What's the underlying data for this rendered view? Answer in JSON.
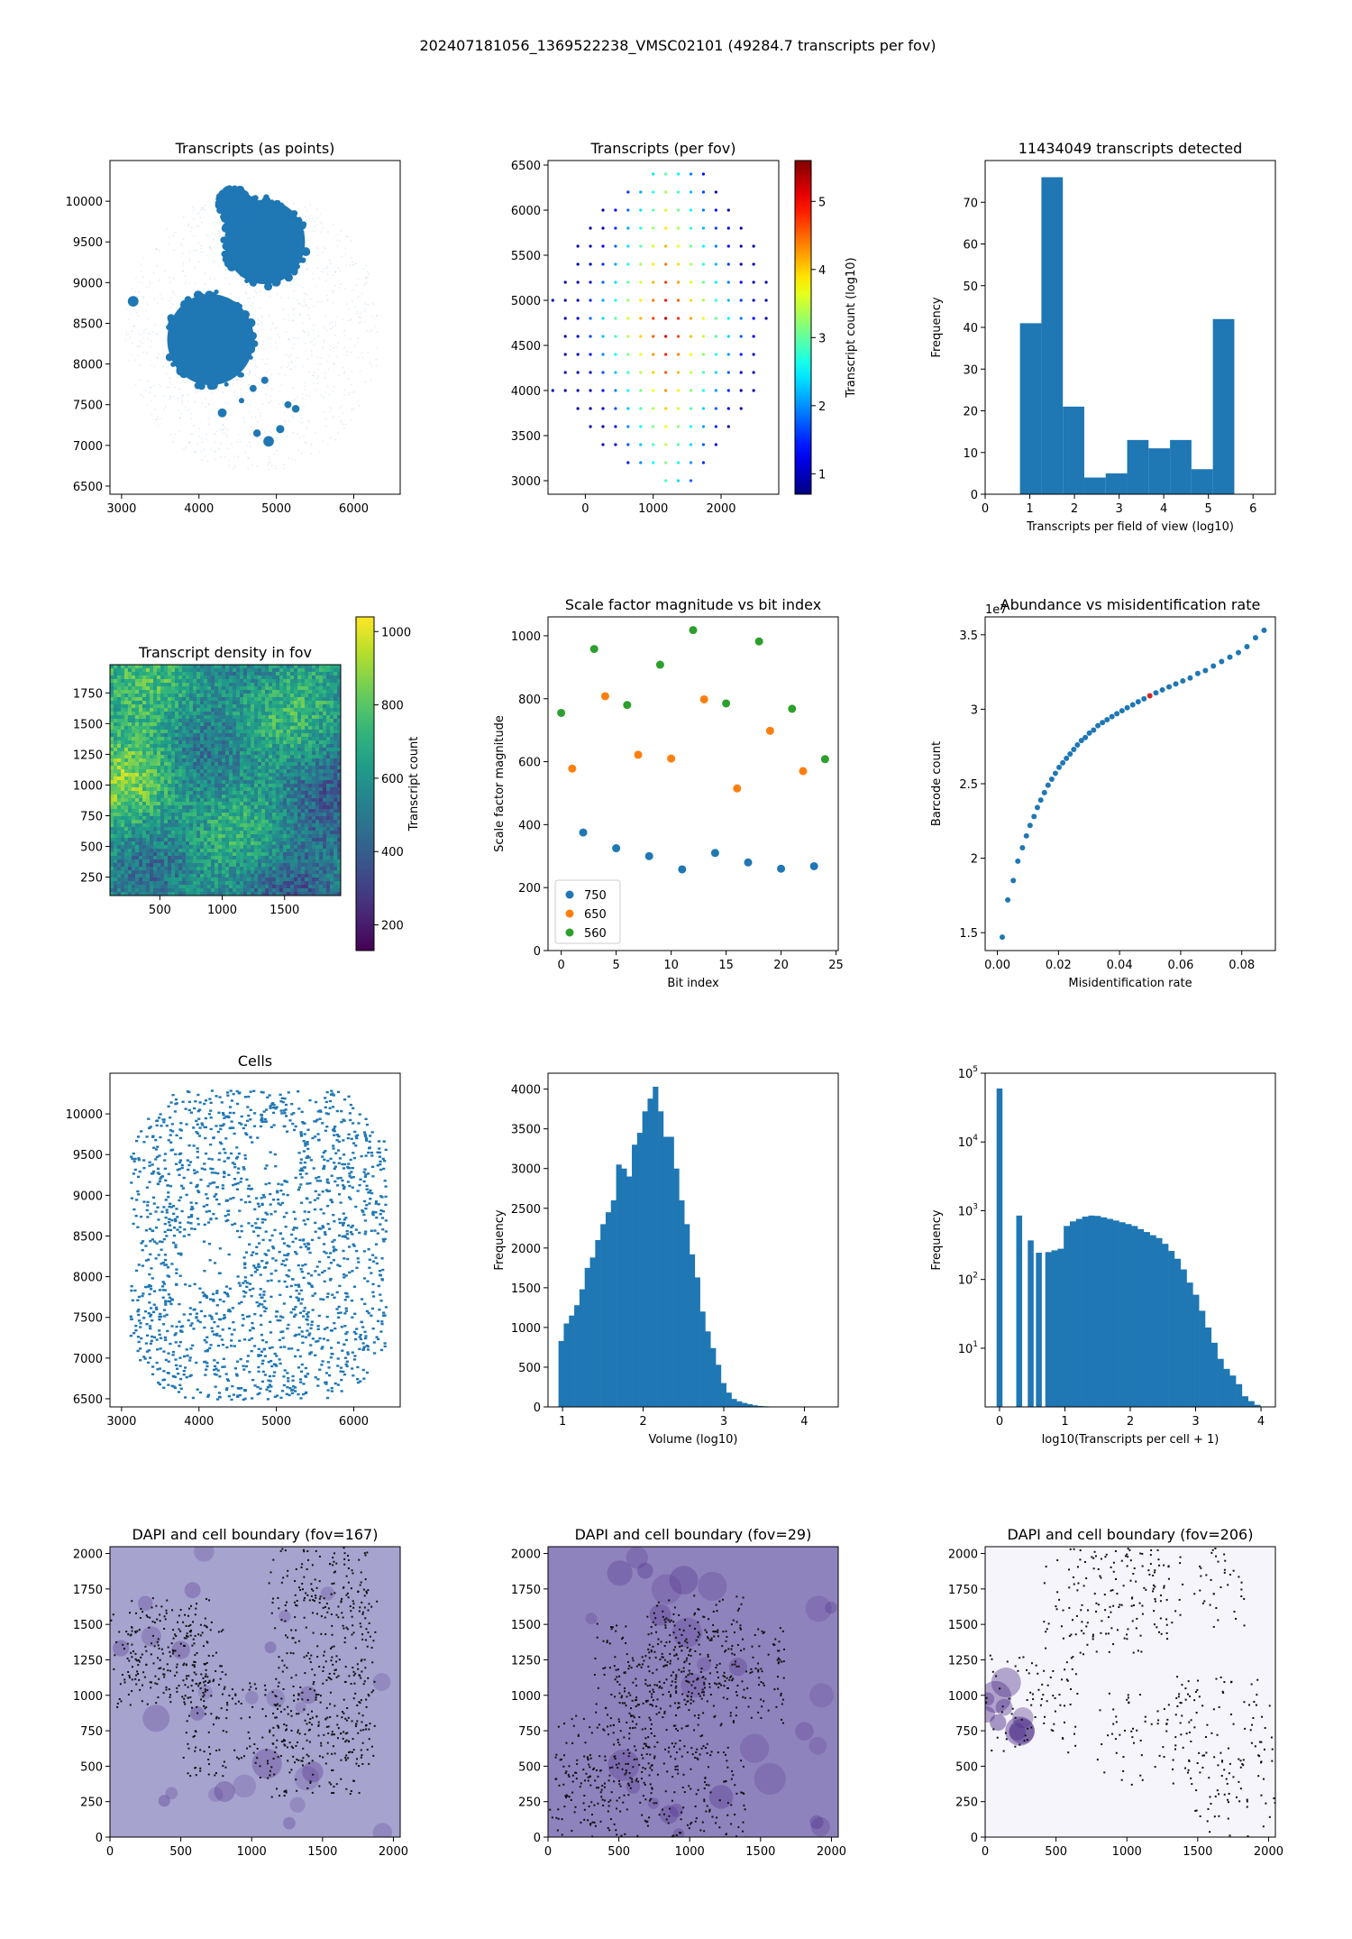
{
  "figure_title": "202407181056_1369522238_VMSC02101 (49284.7 transcripts per fov)",
  "colors": {
    "tab_blue": "#1f77b4",
    "tab_orange": "#ff7f0e",
    "tab_green": "#2ca02c",
    "tab_red": "#d62728",
    "dapi": "#6a4c9c"
  },
  "chart_data": [
    {
      "id": "p1",
      "type": "scatter",
      "title": "Transcripts (as points)",
      "xlabel": "",
      "ylabel": "",
      "xlim": [
        2850,
        6600
      ],
      "ylim": [
        6400,
        10500
      ],
      "xticks": [
        3000,
        4000,
        5000,
        6000
      ],
      "yticks": [
        6500,
        7000,
        7500,
        8000,
        8500,
        9000,
        9500,
        10000
      ],
      "blobs": [
        {
          "shape": "disc",
          "cx": 4850,
          "cy": 9500,
          "r": 520
        },
        {
          "shape": "disc",
          "cx": 4150,
          "cy": 8300,
          "r": 560
        },
        {
          "shape": "disc",
          "cx": 4450,
          "cy": 9950,
          "r": 200
        },
        {
          "shape": "small",
          "points": [
            [
              3150,
              8770
            ],
            [
              4700,
              7700
            ],
            [
              4850,
              7800
            ],
            [
              5150,
              7500
            ],
            [
              5250,
              7450
            ],
            [
              4750,
              7150
            ],
            [
              4900,
              7050
            ],
            [
              4550,
              7550
            ],
            [
              4300,
              7400
            ],
            [
              5050,
              7200
            ]
          ]
        }
      ],
      "halo": {
        "xlim": [
          3000,
          6300
        ],
        "ylim": [
          6700,
          10000
        ]
      }
    },
    {
      "id": "p2",
      "type": "scatter",
      "title": "Transcripts (per fov)",
      "xlabel": "",
      "ylabel": "",
      "xlim": [
        -550,
        2850
      ],
      "ylim": [
        2850,
        6550
      ],
      "xticks": [
        0,
        1000,
        2000
      ],
      "yticks": [
        3000,
        3500,
        4000,
        4500,
        5000,
        5500,
        6000,
        6500
      ],
      "colorbar": {
        "label": "Transcript count (log10)",
        "range": [
          0.7,
          5.6
        ],
        "ticks": [
          1,
          2,
          3,
          4,
          5
        ],
        "cmap": "jet"
      },
      "grid": {
        "x0": -400,
        "dx": 185,
        "y0": 3000,
        "dy": 200,
        "cx": 1200,
        "cy": 4750
      },
      "rows": [
        {
          "y": 6400,
          "x": [
            1000,
            1185,
            1370,
            1555,
            1740
          ]
        },
        {
          "y": 6200,
          "x": [
            630,
            815,
            1000,
            1185,
            1370,
            1555,
            1740,
            1925
          ]
        },
        {
          "y": 6000,
          "x": [
            260,
            445,
            630,
            815,
            1000,
            1185,
            1370,
            1555,
            1740,
            1925,
            2110
          ]
        },
        {
          "y": 5800,
          "x": [
            75,
            260,
            445,
            630,
            815,
            1000,
            1185,
            1370,
            1555,
            1740,
            1925,
            2110,
            2295
          ]
        },
        {
          "y": 5600,
          "x": [
            -110,
            75,
            260,
            445,
            630,
            815,
            1000,
            1185,
            1370,
            1555,
            1740,
            1925,
            2110,
            2295,
            2480
          ]
        },
        {
          "y": 5400,
          "x": [
            -110,
            75,
            260,
            445,
            630,
            815,
            1000,
            1185,
            1370,
            1555,
            1740,
            1925,
            2110,
            2295,
            2480
          ]
        },
        {
          "y": 5200,
          "x": [
            -295,
            -110,
            75,
            260,
            445,
            630,
            815,
            1000,
            1185,
            1370,
            1555,
            1740,
            1925,
            2110,
            2295,
            2480,
            2665
          ]
        },
        {
          "y": 5000,
          "x": [
            -480,
            -295,
            -110,
            75,
            260,
            445,
            630,
            815,
            1000,
            1185,
            1370,
            1555,
            1740,
            1925,
            2110,
            2295,
            2480,
            2665
          ]
        },
        {
          "y": 4800,
          "x": [
            -295,
            -110,
            75,
            260,
            445,
            630,
            815,
            1000,
            1185,
            1370,
            1555,
            1740,
            1925,
            2110,
            2295,
            2480,
            2665
          ]
        },
        {
          "y": 4600,
          "x": [
            -295,
            -110,
            75,
            260,
            445,
            630,
            815,
            1000,
            1185,
            1370,
            1555,
            1740,
            1925,
            2110,
            2295,
            2480
          ]
        },
        {
          "y": 4400,
          "x": [
            -295,
            -110,
            75,
            260,
            445,
            630,
            815,
            1000,
            1185,
            1370,
            1555,
            1740,
            1925,
            2110,
            2295,
            2480
          ]
        },
        {
          "y": 4200,
          "x": [
            -295,
            -110,
            75,
            260,
            445,
            630,
            815,
            1000,
            1185,
            1370,
            1555,
            1740,
            1925,
            2110,
            2295,
            2480
          ]
        },
        {
          "y": 4000,
          "x": [
            -480,
            -295,
            -110,
            75,
            260,
            445,
            630,
            815,
            1000,
            1185,
            1370,
            1555,
            1740,
            1925,
            2110,
            2295,
            2480
          ]
        },
        {
          "y": 3800,
          "x": [
            -110,
            75,
            260,
            445,
            630,
            815,
            1000,
            1185,
            1370,
            1555,
            1740,
            1925,
            2110,
            2295
          ]
        },
        {
          "y": 3600,
          "x": [
            75,
            260,
            445,
            630,
            815,
            1000,
            1185,
            1370,
            1555,
            1740,
            1925,
            2110
          ]
        },
        {
          "y": 3400,
          "x": [
            260,
            445,
            630,
            815,
            1000,
            1185,
            1370,
            1555,
            1740,
            1925
          ]
        },
        {
          "y": 3200,
          "x": [
            630,
            815,
            1000,
            1185,
            1370,
            1555,
            1740
          ]
        },
        {
          "y": 3000,
          "x": [
            1185,
            1370,
            1555
          ]
        }
      ]
    },
    {
      "id": "p3",
      "type": "bar",
      "title": "11434049 transcripts detected",
      "xlabel": "Transcripts per field of view (log10)",
      "ylabel": "Frequency",
      "xlim": [
        0,
        6.5
      ],
      "ylim": [
        0,
        80
      ],
      "xticks": [
        0,
        1,
        2,
        3,
        4,
        5,
        6
      ],
      "yticks": [
        0,
        10,
        20,
        30,
        40,
        50,
        60,
        70
      ],
      "bin_edges": [
        0.78,
        1.26,
        1.74,
        2.22,
        2.7,
        3.18,
        3.66,
        4.14,
        4.62,
        5.1,
        5.58
      ],
      "values": [
        41,
        76,
        21,
        4,
        5,
        13,
        11,
        13,
        6,
        42
      ]
    },
    {
      "id": "p4",
      "type": "heatmap",
      "title": "Transcript density in fov",
      "xlabel": "",
      "ylabel": "",
      "xlim": [
        100,
        1950
      ],
      "ylim": [
        100,
        1980
      ],
      "xticks": [
        500,
        1000,
        1500
      ],
      "yticks": [
        250,
        500,
        750,
        1000,
        1250,
        1500,
        1750
      ],
      "colorbar": {
        "label": "Transcript count",
        "range": [
          130,
          1040
        ],
        "ticks": [
          200,
          400,
          600,
          800,
          1000
        ],
        "cmap": "viridis"
      }
    },
    {
      "id": "p5",
      "type": "scatter",
      "title": "Scale factor magnitude vs bit index",
      "xlabel": "Bit index",
      "ylabel": "Scale factor magnitude",
      "xlim": [
        -1.2,
        25.2
      ],
      "ylim": [
        0,
        1060
      ],
      "xticks": [
        0,
        5,
        10,
        15,
        20,
        25
      ],
      "yticks": [
        0,
        200,
        400,
        600,
        800,
        1000
      ],
      "legend": "lower left",
      "series": [
        {
          "name": "750",
          "color": "#1f77b4",
          "x": [
            2,
            5,
            8,
            11,
            14,
            17,
            20,
            23
          ],
          "y": [
            375,
            325,
            300,
            258,
            310,
            280,
            260,
            268
          ]
        },
        {
          "name": "650",
          "color": "#ff7f0e",
          "x": [
            1,
            4,
            7,
            10,
            13,
            16,
            19,
            22
          ],
          "y": [
            578,
            808,
            622,
            610,
            798,
            515,
            698,
            570
          ]
        },
        {
          "name": "560",
          "color": "#2ca02c",
          "x": [
            0,
            3,
            6,
            9,
            12,
            15,
            18,
            21,
            24
          ],
          "y": [
            755,
            958,
            780,
            908,
            1018,
            785,
            982,
            768,
            608
          ]
        }
      ]
    },
    {
      "id": "p6",
      "type": "scatter",
      "title": "Abundance vs misidentification rate",
      "xlabel": "Misidentification rate",
      "ylabel": "Barcode count",
      "offset_label": "1e7",
      "xlim": [
        -0.004,
        0.091
      ],
      "ylim": [
        1.38,
        3.62
      ],
      "xticks": [
        0.0,
        0.02,
        0.04,
        0.06,
        0.08
      ],
      "xtick_labels": [
        "0.00",
        "0.02",
        "0.04",
        "0.06",
        "0.08"
      ],
      "yticks": [
        1.5,
        2.0,
        2.5,
        3.0,
        3.5
      ],
      "x": [
        0.0016,
        0.0034,
        0.0052,
        0.0067,
        0.0082,
        0.0095,
        0.0107,
        0.012,
        0.0131,
        0.0142,
        0.0154,
        0.0166,
        0.0178,
        0.019,
        0.0202,
        0.0214,
        0.0226,
        0.0238,
        0.025,
        0.0262,
        0.0275,
        0.0288,
        0.0301,
        0.0315,
        0.0329,
        0.0344,
        0.0359,
        0.0375,
        0.0391,
        0.0408,
        0.0425,
        0.0443,
        0.0461,
        0.048,
        0.0499,
        0.0519,
        0.054,
        0.0562,
        0.0584,
        0.0607,
        0.0631,
        0.0656,
        0.0681,
        0.0707,
        0.0734,
        0.0761,
        0.0789,
        0.0817,
        0.0845,
        0.0873
      ],
      "y": [
        1.47,
        1.72,
        1.85,
        1.98,
        2.07,
        2.15,
        2.22,
        2.28,
        2.34,
        2.39,
        2.44,
        2.49,
        2.53,
        2.57,
        2.61,
        2.64,
        2.67,
        2.7,
        2.73,
        2.76,
        2.79,
        2.81,
        2.84,
        2.86,
        2.89,
        2.91,
        2.93,
        2.95,
        2.97,
        2.99,
        3.01,
        3.03,
        3.05,
        3.07,
        3.09,
        3.11,
        3.13,
        3.15,
        3.17,
        3.19,
        3.21,
        3.24,
        3.26,
        3.29,
        3.32,
        3.35,
        3.38,
        3.42,
        3.48,
        3.53
      ],
      "highlight_index": 34
    },
    {
      "id": "p7",
      "type": "scatter",
      "title": "Cells",
      "xlabel": "",
      "ylabel": "",
      "xlim": [
        2850,
        6600
      ],
      "ylim": [
        6400,
        10500
      ],
      "xticks": [
        3000,
        4000,
        5000,
        6000
      ],
      "yticks": [
        6500,
        7000,
        7500,
        8000,
        8500,
        9000,
        9500,
        10000
      ],
      "region": {
        "cx": 4750,
        "cy": 8400,
        "rx": 1650,
        "ry": 1900
      },
      "holes": [
        {
          "cx": 4950,
          "cy": 9480,
          "r": 330
        },
        {
          "cx": 4160,
          "cy": 8260,
          "r": 420
        }
      ]
    },
    {
      "id": "p8",
      "type": "bar",
      "title": "",
      "xlabel": "Volume (log10)",
      "ylabel": "Frequency",
      "xlim": [
        0.82,
        4.42
      ],
      "ylim": [
        0,
        4200
      ],
      "xticks": [
        1,
        2,
        3,
        4
      ],
      "yticks": [
        0,
        500,
        1000,
        1500,
        2000,
        2500,
        3000,
        3500,
        4000
      ],
      "bin_start": 0.95,
      "bin_width": 0.065,
      "values": [
        830,
        1050,
        1150,
        1280,
        1480,
        1750,
        1880,
        2100,
        2300,
        2450,
        2600,
        3050,
        3000,
        2900,
        3300,
        3450,
        3720,
        3880,
        4030,
        3720,
        3400,
        3400,
        3000,
        2600,
        2300,
        1920,
        1630,
        1200,
        950,
        740,
        530,
        300,
        180,
        100,
        70,
        50,
        35,
        20,
        12,
        8,
        5,
        3
      ]
    },
    {
      "id": "p9",
      "type": "bar",
      "title": "",
      "xlabel": "log10(Transcripts per cell + 1)",
      "ylabel": "Frequency",
      "xlim": [
        -0.22,
        4.22
      ],
      "ylog": true,
      "ylim": [
        1.4,
        100000
      ],
      "xticks": [
        0,
        1,
        2,
        3,
        4
      ],
      "yticks_log": [
        1,
        2,
        3,
        4,
        5
      ],
      "bars": [
        {
          "x": 0.0,
          "w": 0.09,
          "v": 60000
        },
        {
          "x": 0.301,
          "w": 0.09,
          "v": 850
        },
        {
          "x": 0.477,
          "w": 0.09,
          "v": 370
        },
        {
          "x": 0.602,
          "w": 0.09,
          "v": 245
        }
      ],
      "dense_start": 0.7,
      "dense_width": 0.094,
      "dense_values": [
        250,
        265,
        280,
        600,
        700,
        760,
        820,
        850,
        840,
        800,
        760,
        720,
        680,
        640,
        600,
        540,
        490,
        440,
        400,
        330,
        260,
        200,
        140,
        90,
        60,
        35,
        20,
        12,
        7,
        5,
        4,
        3,
        2,
        1.7,
        1.5
      ]
    },
    {
      "id": "p10",
      "type": "scatter",
      "title": "DAPI and cell boundary (fov=167)",
      "xlabel": "",
      "ylabel": "",
      "xlim": [
        0,
        2048
      ],
      "ylim": [
        0,
        2048
      ],
      "xticks": [
        0,
        500,
        1000,
        1500,
        2000
      ],
      "yticks": [
        0,
        250,
        500,
        750,
        1000,
        1250,
        1500,
        1750,
        2000
      ],
      "background": "#a6a3cf",
      "bg_intensity": 0.55,
      "seed": 167
    },
    {
      "id": "p11",
      "type": "scatter",
      "title": "DAPI and cell boundary (fov=29)",
      "xlabel": "",
      "ylabel": "",
      "xlim": [
        0,
        2048
      ],
      "ylim": [
        0,
        2048
      ],
      "xticks": [
        0,
        500,
        1000,
        1500,
        2000
      ],
      "yticks": [
        0,
        250,
        500,
        750,
        1000,
        1250,
        1500,
        1750,
        2000
      ],
      "background": "#8f83bd",
      "bg_intensity": 0.7,
      "seed": 29
    },
    {
      "id": "p12",
      "type": "scatter",
      "title": "DAPI and cell boundary (fov=206)",
      "xlabel": "",
      "ylabel": "",
      "xlim": [
        0,
        2048
      ],
      "ylim": [
        0,
        2048
      ],
      "xticks": [
        0,
        500,
        1000,
        1500,
        2000
      ],
      "yticks": [
        0,
        250,
        500,
        750,
        1000,
        1250,
        1500,
        1750,
        2000
      ],
      "background": "#f6f5fb",
      "bg_intensity": 0.05,
      "seed": 206
    }
  ]
}
